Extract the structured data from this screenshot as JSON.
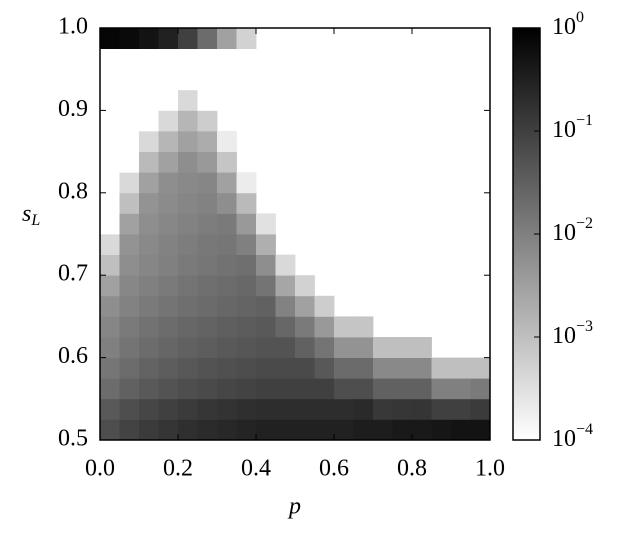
{
  "chart_data": {
    "type": "heatmap",
    "xlabel": "p",
    "ylabel": "s",
    "ylabel_sub": "L",
    "x": [
      0,
      0.05,
      0.1,
      0.15,
      0.2,
      0.25,
      0.3,
      0.35,
      0.4,
      0.45,
      0.5,
      0.55,
      0.6,
      0.65,
      0.7,
      0.75,
      0.8,
      0.85,
      0.9,
      0.95,
      1
    ],
    "y": [
      0.5,
      0.525,
      0.55,
      0.575,
      0.6,
      0.625,
      0.65,
      0.675,
      0.7,
      0.725,
      0.75,
      0.775,
      0.8,
      0.825,
      0.85,
      0.875,
      0.9,
      0.925,
      0.95,
      0.975,
      1
    ],
    "values": [
      [
        0.06,
        0.04,
        0.02,
        0.014,
        0.01,
        0.008,
        0.006,
        0.003,
        0.001,
        0.0004,
        0.0001,
        null,
        null,
        null,
        null,
        null,
        null,
        null,
        null,
        0.8
      ],
      [
        0.09,
        0.06,
        0.03,
        0.02,
        0.015,
        0.012,
        0.009,
        0.0075,
        0.006,
        0.005,
        0.003,
        0.001,
        0.0004,
        0.0001,
        null,
        null,
        null,
        null,
        null,
        0.7
      ],
      [
        0.12,
        0.08,
        0.04,
        0.028,
        0.02,
        0.016,
        0.012,
        0.01,
        0.008,
        0.007,
        0.006,
        0.005,
        0.003,
        0.0012,
        0.0004,
        0.0001,
        null,
        null,
        null,
        0.5
      ],
      [
        0.15,
        0.1,
        0.05,
        0.035,
        0.025,
        0.02,
        0.015,
        0.012,
        0.01,
        0.009,
        0.0075,
        0.0065,
        0.006,
        0.003,
        0.0014,
        0.0004,
        0.0001,
        null,
        null,
        0.3
      ],
      [
        0.18,
        0.12,
        0.06,
        0.042,
        0.03,
        0.024,
        0.018,
        0.015,
        0.012,
        0.011,
        0.009,
        0.008,
        0.007,
        0.006,
        0.003,
        0.0014,
        0.0004,
        0.0001,
        null,
        0.1
      ],
      [
        0.21,
        0.14,
        0.07,
        0.05,
        0.035,
        0.028,
        0.021,
        0.018,
        0.014,
        0.013,
        0.011,
        0.009,
        0.008,
        0.004,
        0.002,
        0.0006,
        0.0001,
        null,
        null,
        0.02
      ],
      [
        0.24,
        0.16,
        0.08,
        0.056,
        0.04,
        0.032,
        0.024,
        0.02,
        0.016,
        0.014,
        0.012,
        0.006,
        0.003,
        0.0008,
        0.0002,
        null,
        null,
        null,
        null,
        0.003
      ],
      [
        0.27,
        0.18,
        0.09,
        0.063,
        0.045,
        0.036,
        0.027,
        0.023,
        0.018,
        0.01,
        0.004,
        0.0012,
        0.0002,
        null,
        null,
        null,
        null,
        null,
        null,
        0.0005
      ],
      [
        0.3,
        0.2,
        0.1,
        0.07,
        0.05,
        0.04,
        0.03,
        0.015,
        0.006,
        0.0018,
        0.0003,
        null,
        null,
        null,
        null,
        null,
        null,
        null,
        null,
        null
      ],
      [
        0.3,
        0.2,
        0.1,
        0.07,
        0.05,
        0.024,
        0.009,
        0.0025,
        0.0004,
        null,
        null,
        null,
        null,
        null,
        null,
        null,
        null,
        null,
        null,
        null
      ],
      [
        0.3,
        0.2,
        0.1,
        0.07,
        0.03,
        0.012,
        0.003,
        0.0005,
        null,
        null,
        null,
        null,
        null,
        null,
        null,
        null,
        null,
        null,
        null,
        null
      ],
      [
        0.3,
        0.2,
        0.1,
        0.042,
        0.015,
        0.004,
        0.0006,
        null,
        null,
        null,
        null,
        null,
        null,
        null,
        null,
        null,
        null,
        null,
        null,
        null
      ],
      [
        0.3,
        0.2,
        0.06,
        0.021,
        0.005,
        0.0008,
        null,
        null,
        null,
        null,
        null,
        null,
        null,
        null,
        null,
        null,
        null,
        null,
        null,
        null
      ],
      [
        0.35,
        0.22,
        0.06,
        0.021,
        0.005,
        0.0008,
        null,
        null,
        null,
        null,
        null,
        null,
        null,
        null,
        null,
        null,
        null,
        null,
        null,
        null
      ],
      [
        0.35,
        0.13,
        0.03,
        0.007,
        0.001,
        null,
        null,
        null,
        null,
        null,
        null,
        null,
        null,
        null,
        null,
        null,
        null,
        null,
        null,
        null
      ],
      [
        0.4,
        0.14,
        0.03,
        0.007,
        0.001,
        null,
        null,
        null,
        null,
        null,
        null,
        null,
        null,
        null,
        null,
        null,
        null,
        null,
        null,
        null
      ],
      [
        0.4,
        0.15,
        0.03,
        0.007,
        0.001,
        null,
        null,
        null,
        null,
        null,
        null,
        null,
        null,
        null,
        null,
        null,
        null,
        null,
        null,
        null
      ],
      [
        0.45,
        0.1,
        0.01,
        0.001,
        null,
        null,
        null,
        null,
        null,
        null,
        null,
        null,
        null,
        null,
        null,
        null,
        null,
        null,
        null,
        null
      ],
      [
        0.5,
        0.1,
        0.01,
        0.001,
        null,
        null,
        null,
        null,
        null,
        null,
        null,
        null,
        null,
        null,
        null,
        null,
        null,
        null,
        null,
        null
      ],
      [
        0.5,
        0.12,
        0.012,
        0.001,
        null,
        null,
        null,
        null,
        null,
        null,
        null,
        null,
        null,
        null,
        null,
        null,
        null,
        null,
        null,
        null
      ]
    ],
    "xlim": [
      0,
      1
    ],
    "xticks": [
      {
        "value": 0,
        "label": "0.0"
      },
      0.2,
      0.4,
      0.6,
      0.8,
      {
        "value": 1,
        "label": "1.0"
      }
    ],
    "ylim": [
      0.5,
      1
    ],
    "yticks": [
      0.5,
      0.6,
      0.7,
      0.8,
      0.9,
      {
        "value": 1,
        "label": "1.0"
      }
    ],
    "colormap": [
      "#ffffff",
      "#000000"
    ],
    "clim": [
      0.0001,
      1
    ],
    "clog": true,
    "cticks": [
      {
        "value": 0.0001,
        "label": "10",
        "exponent": "−4"
      },
      {
        "value": 0.001,
        "label": "10",
        "exponent": "−3"
      },
      {
        "value": 0.01,
        "label": "10",
        "exponent": "−2"
      },
      {
        "value": 0.1,
        "label": "10",
        "exponent": "−1"
      },
      {
        "value": 1,
        "label": "10",
        "exponent": "0"
      }
    ]
  }
}
